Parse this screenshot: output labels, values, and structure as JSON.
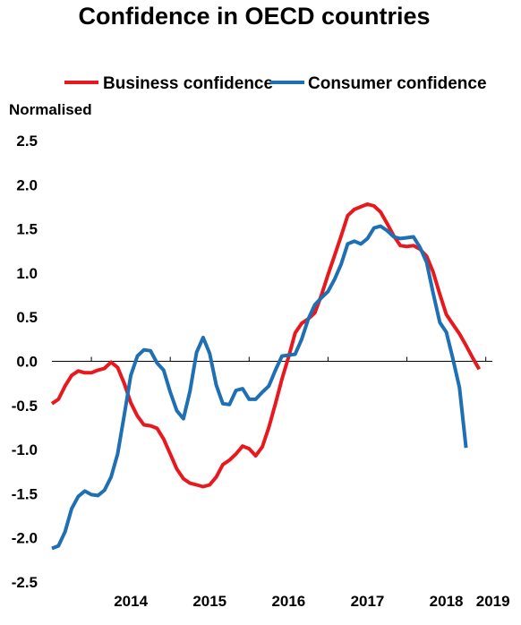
{
  "chart_data": {
    "type": "line",
    "title": "Confidence in OECD countries",
    "ylabel": "Normalised",
    "xlabel": "",
    "ylim": [
      -2.5,
      2.5
    ],
    "yticks": [
      "2.5",
      "2.0",
      "1.5",
      "1.0",
      "0.5",
      "0.0",
      "-0.5",
      "-1.0",
      "-1.5",
      "-2.0",
      "-2.5"
    ],
    "xlim": [
      "2013-07",
      "2019-02"
    ],
    "xtick_labels": [
      "2014",
      "2015",
      "2016",
      "2017",
      "2018",
      "2019"
    ],
    "grid": false,
    "zero_line": true,
    "legend_position": "top",
    "colors": {
      "business": "#e8191e",
      "consumer": "#1f6fb4"
    },
    "series": [
      {
        "name": "Business confidence",
        "x": [
          "2013-07",
          "2013-08",
          "2013-09",
          "2013-10",
          "2013-11",
          "2013-12",
          "2014-01",
          "2014-02",
          "2014-03",
          "2014-04",
          "2014-05",
          "2014-06",
          "2014-07",
          "2014-08",
          "2014-09",
          "2014-10",
          "2014-11",
          "2014-12",
          "2015-01",
          "2015-02",
          "2015-03",
          "2015-04",
          "2015-05",
          "2015-06",
          "2015-07",
          "2015-08",
          "2015-09",
          "2015-10",
          "2015-11",
          "2015-12",
          "2016-01",
          "2016-02",
          "2016-03",
          "2016-04",
          "2016-05",
          "2016-06",
          "2016-07",
          "2016-08",
          "2016-09",
          "2016-10",
          "2016-11",
          "2016-12",
          "2017-01",
          "2017-02",
          "2017-03",
          "2017-04",
          "2017-05",
          "2017-06",
          "2017-07",
          "2017-08",
          "2017-09",
          "2017-10",
          "2017-11",
          "2017-12",
          "2018-01",
          "2018-02",
          "2018-03",
          "2018-04",
          "2018-05",
          "2018-06",
          "2018-07",
          "2018-08",
          "2018-09",
          "2018-10",
          "2018-11",
          "2018-12",
          "2019-01"
        ],
        "values": [
          -0.48,
          -0.43,
          -0.28,
          -0.16,
          -0.11,
          -0.13,
          -0.13,
          -0.1,
          -0.08,
          -0.01,
          -0.07,
          -0.25,
          -0.47,
          -0.62,
          -0.72,
          -0.73,
          -0.76,
          -0.88,
          -1.05,
          -1.22,
          -1.33,
          -1.38,
          -1.4,
          -1.42,
          -1.4,
          -1.31,
          -1.17,
          -1.12,
          -1.05,
          -0.96,
          -0.99,
          -1.07,
          -0.97,
          -0.75,
          -0.48,
          -0.2,
          0.05,
          0.32,
          0.43,
          0.48,
          0.55,
          0.75,
          0.98,
          1.2,
          1.42,
          1.65,
          1.72,
          1.75,
          1.78,
          1.76,
          1.69,
          1.56,
          1.42,
          1.31,
          1.3,
          1.31,
          1.27,
          1.19,
          1.01,
          0.76,
          0.53,
          0.42,
          0.31,
          0.18,
          0.04,
          -0.09,
          null
        ]
      },
      {
        "name": "Consumer confidence",
        "x": [
          "2013-07",
          "2013-08",
          "2013-09",
          "2013-10",
          "2013-11",
          "2013-12",
          "2014-01",
          "2014-02",
          "2014-03",
          "2014-04",
          "2014-05",
          "2014-06",
          "2014-07",
          "2014-08",
          "2014-09",
          "2014-10",
          "2014-11",
          "2014-12",
          "2015-01",
          "2015-02",
          "2015-03",
          "2015-04",
          "2015-05",
          "2015-06",
          "2015-07",
          "2015-08",
          "2015-09",
          "2015-10",
          "2015-11",
          "2015-12",
          "2016-01",
          "2016-02",
          "2016-03",
          "2016-04",
          "2016-05",
          "2016-06",
          "2016-07",
          "2016-08",
          "2016-09",
          "2016-10",
          "2016-11",
          "2016-12",
          "2017-01",
          "2017-02",
          "2017-03",
          "2017-04",
          "2017-05",
          "2017-06",
          "2017-07",
          "2017-08",
          "2017-09",
          "2017-10",
          "2017-11",
          "2017-12",
          "2018-01",
          "2018-02",
          "2018-03",
          "2018-04",
          "2018-05",
          "2018-06",
          "2018-07",
          "2018-08",
          "2018-09",
          "2018-10",
          "2018-11",
          "2018-12",
          "2019-01"
        ],
        "values": [
          -2.12,
          -2.09,
          -1.93,
          -1.67,
          -1.53,
          -1.47,
          -1.51,
          -1.52,
          -1.46,
          -1.31,
          -1.05,
          -0.61,
          -0.16,
          0.06,
          0.13,
          0.12,
          -0.02,
          -0.1,
          -0.35,
          -0.56,
          -0.65,
          -0.34,
          0.1,
          0.27,
          0.09,
          -0.27,
          -0.48,
          -0.49,
          -0.33,
          -0.31,
          -0.43,
          -0.43,
          -0.35,
          -0.28,
          -0.1,
          0.06,
          0.07,
          0.08,
          0.25,
          0.48,
          0.64,
          0.72,
          0.79,
          0.93,
          1.1,
          1.33,
          1.36,
          1.33,
          1.39,
          1.51,
          1.53,
          1.48,
          1.41,
          1.39,
          1.4,
          1.41,
          1.29,
          1.12,
          0.77,
          0.44,
          0.33,
          0.03,
          -0.3,
          -0.98,
          null,
          null,
          null
        ]
      }
    ]
  }
}
